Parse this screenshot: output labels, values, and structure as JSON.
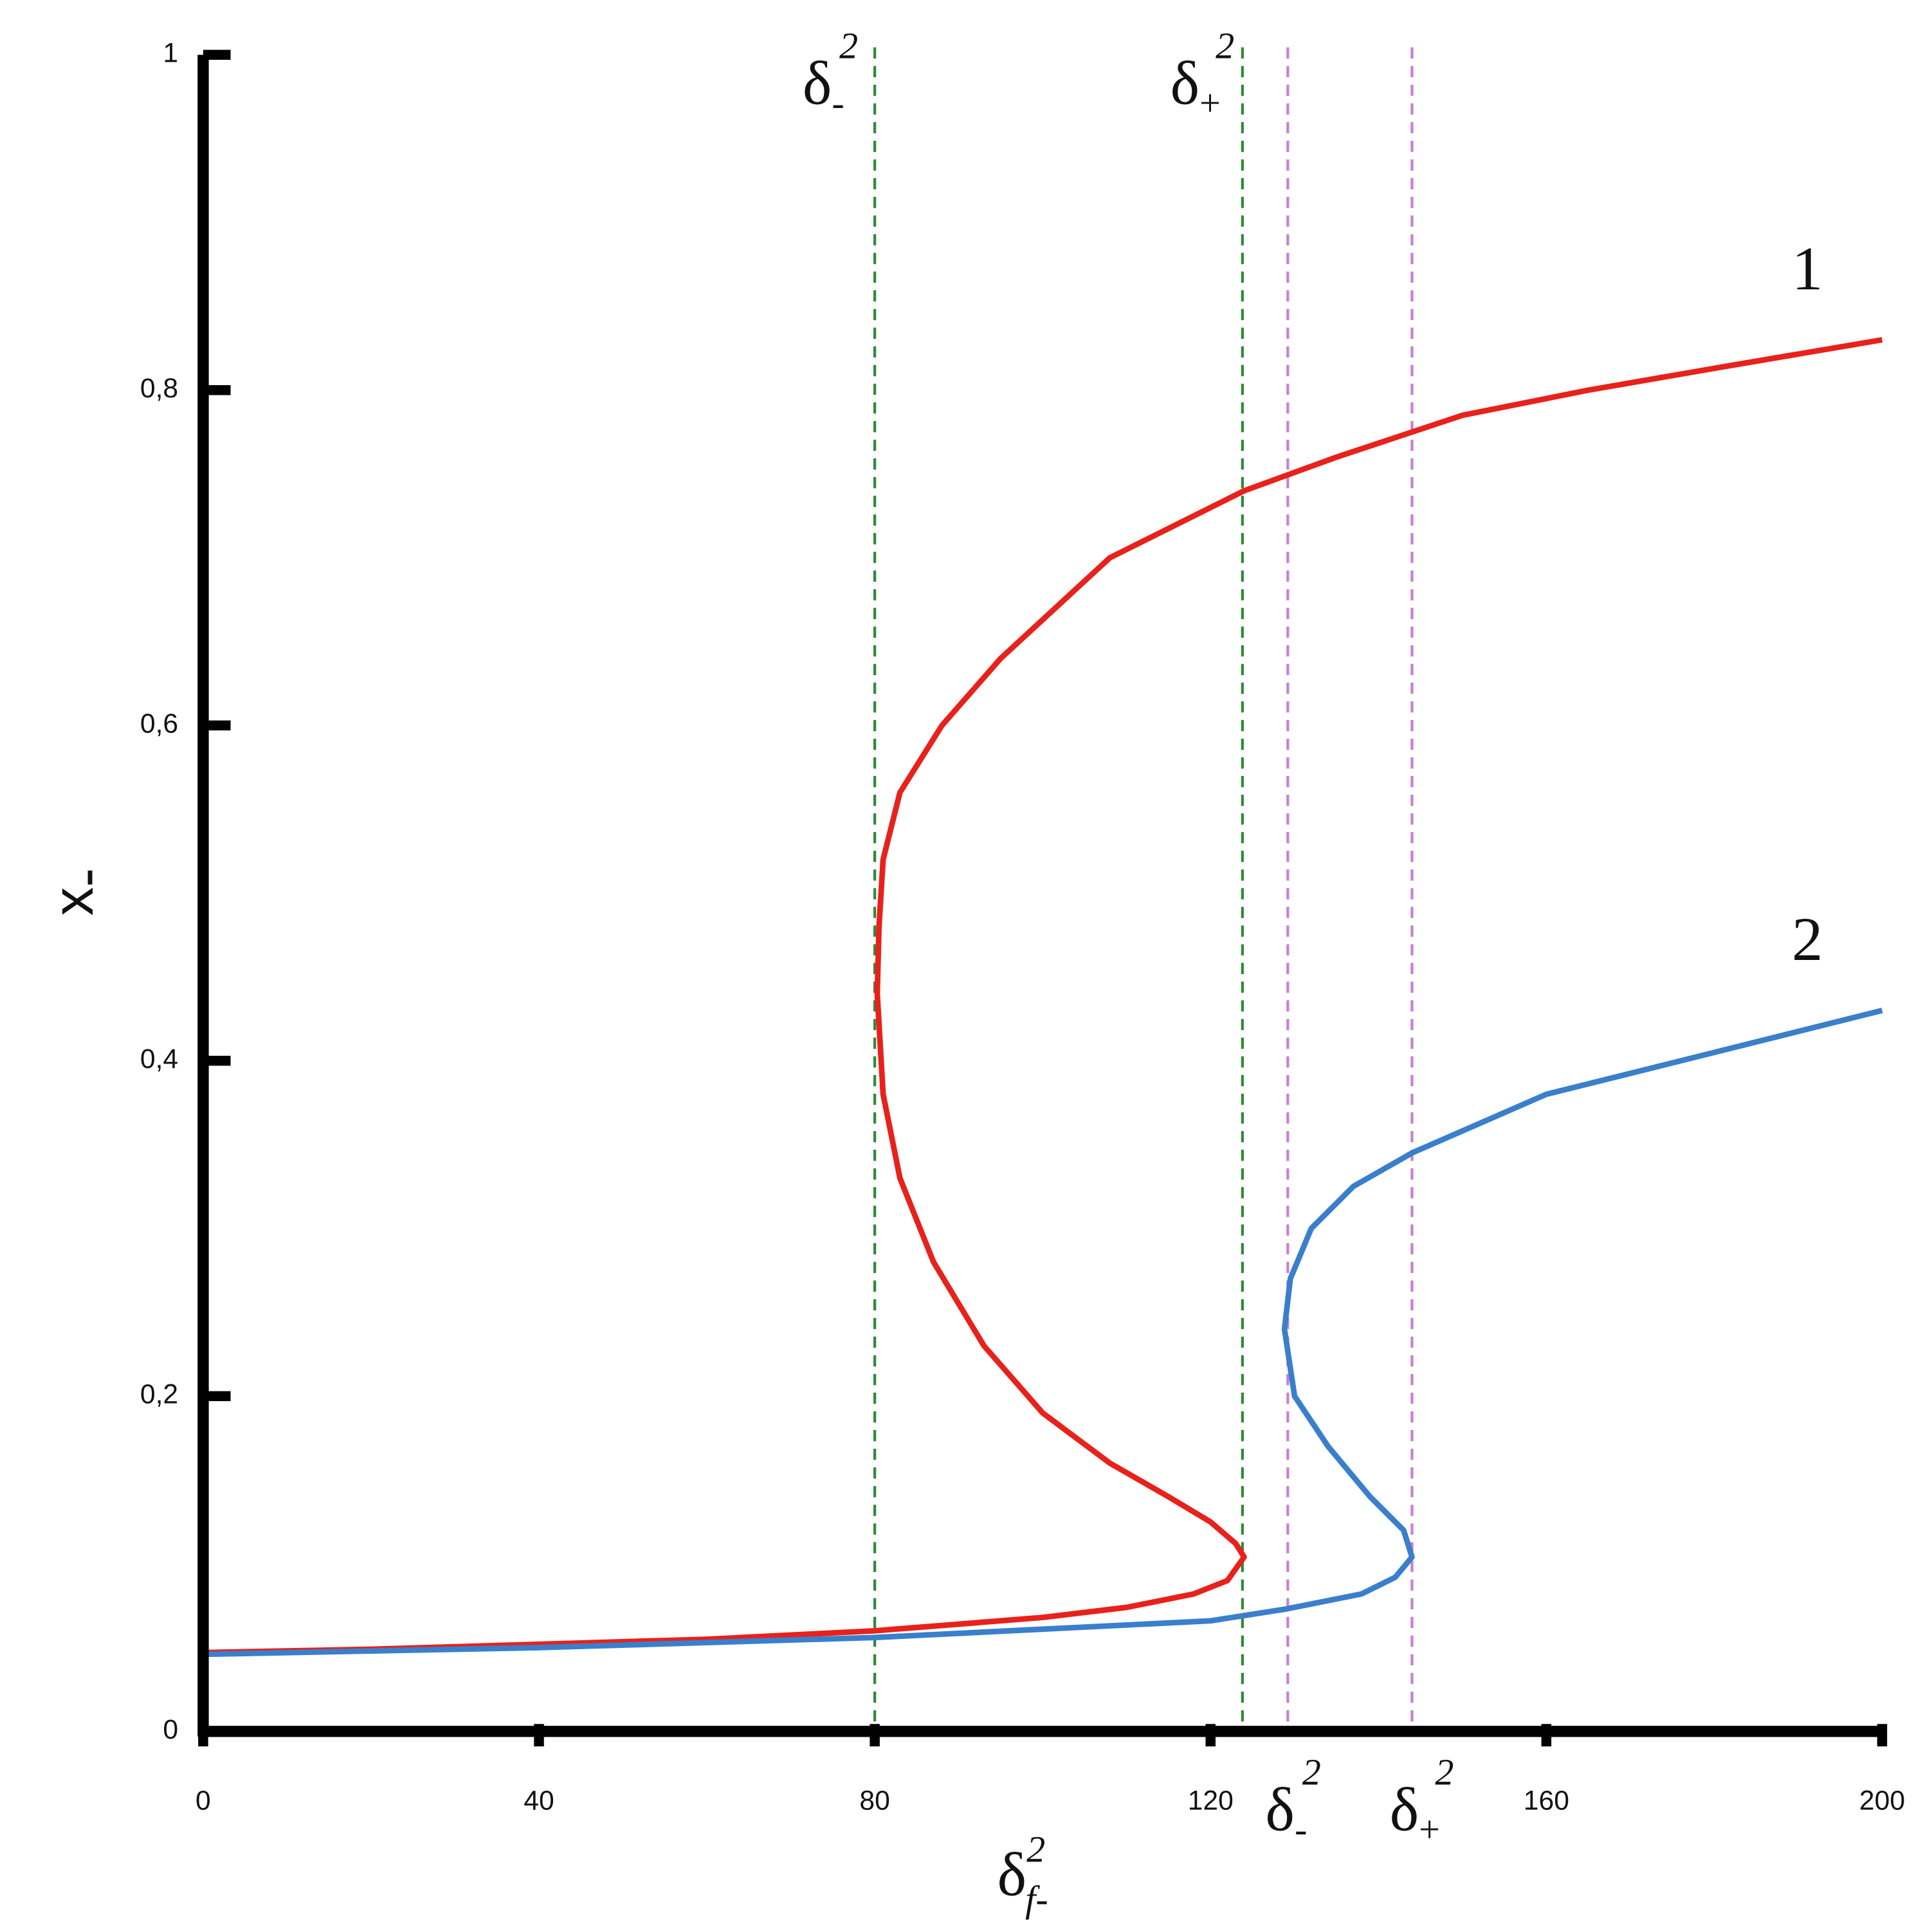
{
  "chart_data": {
    "type": "line",
    "xlabel": {
      "symbol": "δ",
      "sup": "2",
      "sub": "f-"
    },
    "ylabel": {
      "symbol": "x",
      "sub": "-"
    },
    "xlim": [
      0,
      200
    ],
    "ylim": [
      0,
      1
    ],
    "xticks": [
      0,
      40,
      80,
      120,
      160,
      200
    ],
    "yticks": [
      0,
      {
        "value": 0.2,
        "label": "0,2"
      },
      {
        "value": 0.4,
        "label": "0,4"
      },
      {
        "value": 0.6,
        "label": "0,6"
      },
      {
        "value": 0.8,
        "label": "0,8"
      },
      1
    ],
    "series": [
      {
        "name": "1",
        "color": "#e8211b",
        "x": [
          0,
          20,
          40,
          60,
          80,
          100,
          110,
          118,
          122,
          124,
          123,
          120,
          115,
          108,
          100,
          93,
          87,
          83,
          81,
          80.3,
          80.5,
          81,
          83,
          88,
          95,
          108,
          124,
          135,
          150,
          165,
          180,
          200
        ],
        "values": [
          0.047,
          0.049,
          0.052,
          0.055,
          0.06,
          0.068,
          0.074,
          0.082,
          0.09,
          0.104,
          0.112,
          0.125,
          0.14,
          0.16,
          0.19,
          0.23,
          0.28,
          0.33,
          0.38,
          0.44,
          0.48,
          0.52,
          0.56,
          0.6,
          0.64,
          0.7,
          0.74,
          0.76,
          0.785,
          0.8,
          0.813,
          0.83
        ]
      },
      {
        "name": "2",
        "color": "#3a7fcc",
        "x": [
          0,
          40,
          80,
          120,
          129,
          138,
          142,
          144,
          143,
          139,
          134,
          130,
          128.8,
          129.5,
          132,
          137,
          144,
          160,
          180,
          200
        ],
        "values": [
          0.046,
          0.05,
          0.056,
          0.066,
          0.073,
          0.082,
          0.092,
          0.104,
          0.12,
          0.14,
          0.17,
          0.2,
          0.24,
          0.27,
          0.3,
          0.325,
          0.345,
          0.38,
          0.405,
          0.43
        ]
      }
    ],
    "vlines": [
      {
        "x": 80,
        "color": "#2e8b3a",
        "label_position": "top",
        "label": {
          "symbol": "δ",
          "sub": "-",
          "sup": "2"
        }
      },
      {
        "x": 123.8,
        "color": "#2e8b3a",
        "label_position": "top",
        "label": {
          "symbol": "δ",
          "sub": "+",
          "sup": "2"
        }
      },
      {
        "x": 129.2,
        "color": "#c77fd6",
        "label_position": "bottom",
        "label": {
          "symbol": "δ",
          "sub": "-",
          "sup": "2"
        }
      },
      {
        "x": 144,
        "color": "#c77fd6",
        "label_position": "bottom",
        "label": {
          "symbol": "δ",
          "sub": "+",
          "sup": "2"
        }
      }
    ]
  }
}
